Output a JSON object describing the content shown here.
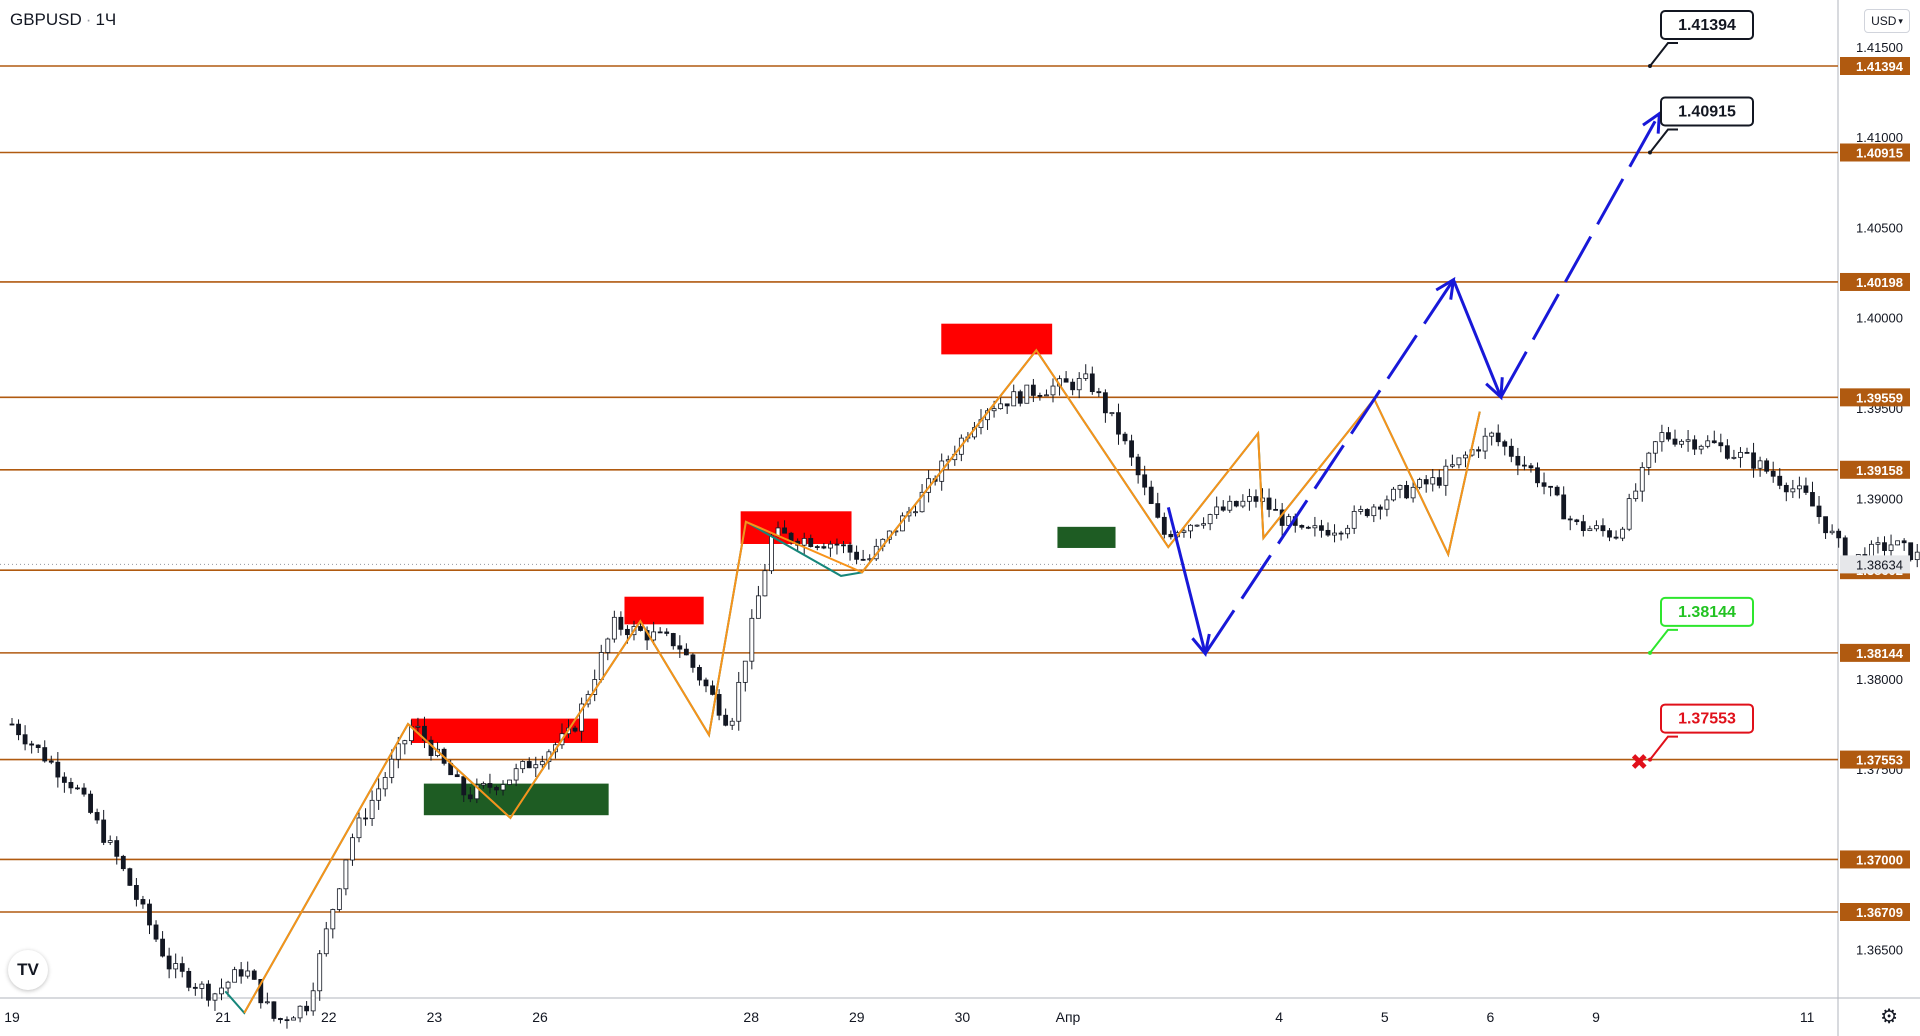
{
  "header": {
    "symbol": "GBPUSD",
    "separator": "·",
    "timeframe": "1Ч",
    "currency": "USD"
  },
  "chart_data": {
    "type": "candlestick",
    "symbol": "GBPUSD",
    "timeframe": "1Ч",
    "ylim": [
      1.3605,
      1.4175
    ],
    "price_ticks": [
      "1.41500",
      "1.41000",
      "1.40500",
      "1.40000",
      "1.39500",
      "1.39000",
      "1.38000",
      "1.37500",
      "1.36500"
    ],
    "price_tick_values": [
      1.415,
      1.41,
      1.405,
      1.4,
      1.395,
      1.39,
      1.38,
      1.375,
      1.365
    ],
    "date_ticks": [
      "19",
      "21",
      "22",
      "23",
      "26",
      "28",
      "29",
      "30",
      "Апр",
      "4",
      "5",
      "6",
      "9",
      "11"
    ],
    "date_tick_index": [
      0,
      2,
      3,
      4,
      5,
      7,
      8,
      9,
      10,
      12,
      13,
      14,
      15,
      17
    ],
    "levels": [
      {
        "label": "1.41394",
        "value": 1.41394
      },
      {
        "label": "1.40915",
        "value": 1.40915
      },
      {
        "label": "1.40198",
        "value": 1.40198
      },
      {
        "label": "1.39559",
        "value": 1.39559
      },
      {
        "label": "1.39158",
        "value": 1.39158
      },
      {
        "label": "1.38602",
        "value": 1.38602
      },
      {
        "label": "1.38144",
        "value": 1.38144
      },
      {
        "label": "1.37553",
        "value": 1.37553
      },
      {
        "label": "1.37000",
        "value": 1.37
      },
      {
        "label": "1.36709",
        "value": 1.36709
      }
    ],
    "current_price": {
      "label": "1.38634",
      "value": 1.38634
    },
    "callouts": [
      {
        "label": "1.41394",
        "value": 1.41394,
        "style": "target"
      },
      {
        "label": "1.40915",
        "value": 1.40915,
        "style": "target"
      },
      {
        "label": "1.38144",
        "value": 1.38144,
        "style": "take-profit"
      },
      {
        "label": "1.37553",
        "value": 1.37553,
        "style": "stop-loss"
      }
    ],
    "close_path": [
      [
        0,
        1.3775
      ],
      [
        0.6,
        1.374
      ],
      [
        1.0,
        1.37
      ],
      [
        1.5,
        1.364
      ],
      [
        1.9,
        1.3625
      ],
      [
        2.2,
        1.364
      ],
      [
        2.5,
        1.361
      ],
      [
        2.8,
        1.362
      ],
      [
        3.2,
        1.371
      ],
      [
        3.8,
        1.3775
      ],
      [
        4.3,
        1.3735
      ],
      [
        4.7,
        1.3745
      ],
      [
        5.3,
        1.377
      ],
      [
        5.7,
        1.383
      ],
      [
        6.3,
        1.382
      ],
      [
        6.8,
        1.3775
      ],
      [
        7.2,
        1.388
      ],
      [
        7.8,
        1.3875
      ],
      [
        8.1,
        1.3865
      ],
      [
        8.6,
        1.39
      ],
      [
        9.2,
        1.395
      ],
      [
        9.7,
        1.396
      ],
      [
        10.2,
        1.3965
      ],
      [
        10.5,
        1.3935
      ],
      [
        10.9,
        1.388
      ],
      [
        11.3,
        1.389
      ],
      [
        11.8,
        1.39
      ],
      [
        12.2,
        1.388
      ],
      [
        12.6,
        1.3885
      ],
      [
        13.0,
        1.39
      ],
      [
        13.5,
        1.391
      ],
      [
        14.0,
        1.3935
      ],
      [
        14.4,
        1.3915
      ],
      [
        14.8,
        1.3885
      ],
      [
        15.2,
        1.388
      ],
      [
        15.6,
        1.3935
      ],
      [
        16.1,
        1.393
      ],
      [
        16.5,
        1.392
      ],
      [
        17.0,
        1.39
      ],
      [
        17.4,
        1.3865
      ],
      [
        17.8,
        1.3875
      ],
      [
        18.3,
        1.386
      ],
      [
        18.8,
        1.3865
      ],
      [
        19.5,
        1.3855
      ]
    ],
    "zones": [
      {
        "type": "supply",
        "x0": 3.78,
        "x1": 5.55,
        "y0": 1.37645,
        "y1": 1.3778
      },
      {
        "type": "demand",
        "x0": 3.9,
        "x1": 5.65,
        "y0": 1.37245,
        "y1": 1.3742
      },
      {
        "type": "supply",
        "x0": 5.8,
        "x1": 6.55,
        "y0": 1.38302,
        "y1": 1.38455
      },
      {
        "type": "supply",
        "x0": 6.9,
        "x1": 7.95,
        "y0": 1.38747,
        "y1": 1.38928
      },
      {
        "type": "supply",
        "x0": 8.8,
        "x1": 9.85,
        "y0": 1.39797,
        "y1": 1.39967
      },
      {
        "type": "demand",
        "x0": 9.9,
        "x1": 10.45,
        "y0": 1.38725,
        "y1": 1.38842
      }
    ],
    "orange_zigzag": [
      [
        2.2,
        1.3615
      ],
      [
        3.75,
        1.3775
      ],
      [
        4.72,
        1.3723
      ],
      [
        5.95,
        1.3832
      ],
      [
        6.6,
        1.3769
      ],
      [
        6.95,
        1.3887
      ],
      [
        8.05,
        1.3859
      ],
      [
        9.7,
        1.3982
      ],
      [
        10.95,
        1.3873
      ],
      [
        11.8,
        1.3936
      ],
      [
        11.85,
        1.3878
      ],
      [
        12.9,
        1.3955
      ],
      [
        13.6,
        1.3869
      ],
      [
        13.9,
        1.3948
      ]
    ],
    "teal_zigzag": [
      [
        2.02,
        1.3627
      ],
      [
        2.2,
        1.3615
      ],
      [
        3.75,
        1.3775
      ],
      [
        4.72,
        1.3723
      ],
      [
        5.95,
        1.3832
      ],
      [
        6.6,
        1.3769
      ],
      [
        6.95,
        1.3887
      ],
      [
        7.85,
        1.3857
      ],
      [
        8.05,
        1.3859
      ],
      [
        9.7,
        1.3982
      ],
      [
        10.95,
        1.3873
      ],
      [
        11.8,
        1.3936
      ],
      [
        11.85,
        1.3878
      ],
      [
        12.9,
        1.3955
      ],
      [
        13.6,
        1.3869
      ],
      [
        13.9,
        1.3948
      ]
    ],
    "forecast_path": [
      [
        10.95,
        1.3895
      ],
      [
        11.3,
        1.3814
      ],
      [
        13.65,
        1.4021
      ],
      [
        14.1,
        1.3956
      ],
      [
        15.6,
        1.4113
      ]
    ],
    "stop_marker": {
      "value": 1.37553,
      "symbol": "✖"
    }
  }
}
